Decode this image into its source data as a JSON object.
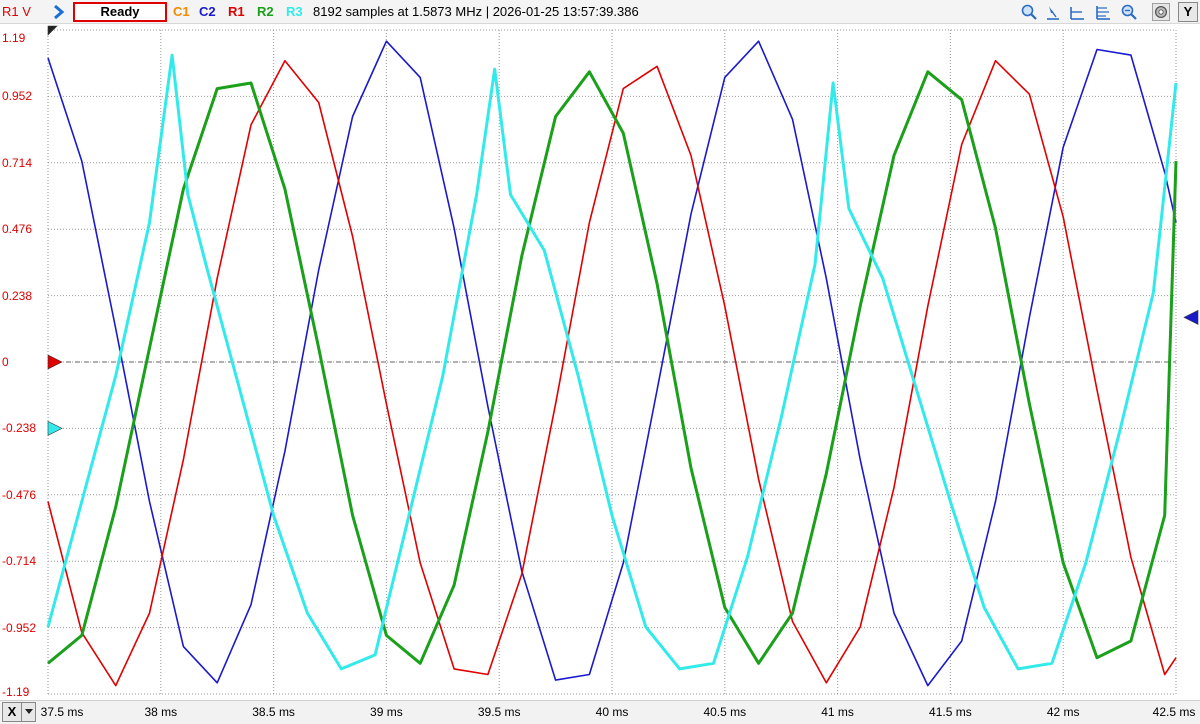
{
  "toolbar": {
    "axis_unit_label": "R1 V",
    "status": "Ready",
    "channels": [
      {
        "label": "C1",
        "color": "#f08c00"
      },
      {
        "label": "C2",
        "color": "#1a1acc"
      },
      {
        "label": "R1",
        "color": "#e00000"
      },
      {
        "label": "R2",
        "color": "#1aa01a"
      },
      {
        "label": "R3",
        "color": "#33eaea"
      }
    ],
    "info": "8192 samples at 1.5873 MHz | 2026-01-25 13:57:39.386",
    "icons": [
      "zoom-in-icon",
      "cursor-icon",
      "horizontal-cursor-icon",
      "multi-cursor-icon",
      "zoom-out-icon",
      "settings-icon"
    ],
    "y_button": "Y"
  },
  "x_axis": {
    "button": "X"
  },
  "colors": {
    "background": "#ffffff",
    "grid": "#9a9a9a",
    "ref_r1": "#e00000",
    "ref_r3": "#33eaea",
    "ref_c2": "#1a1acc"
  },
  "chart_data": {
    "type": "line",
    "title": "",
    "xlabel": "",
    "ylabel": "R1 V",
    "xlim": [
      37.5,
      42.5
    ],
    "ylim": [
      -1.19,
      1.19
    ],
    "x_ticks": [
      "37.5 ms",
      "38 ms",
      "38.5 ms",
      "39 ms",
      "39.5 ms",
      "40 ms",
      "40.5 ms",
      "41 ms",
      "41.5 ms",
      "42 ms",
      "42.5 ms"
    ],
    "y_ticks": [
      "1.19",
      "0.952",
      "0.714",
      "0.476",
      "0.238",
      "0",
      "-0.238",
      "-0.476",
      "-0.714",
      "-0.952",
      "-1.19"
    ],
    "grid": true,
    "series": [
      {
        "name": "C2",
        "color": "#1a1acc",
        "x": [
          37.5,
          37.65,
          37.8,
          37.95,
          38.1,
          38.25,
          38.4,
          38.55,
          38.7,
          38.85,
          39.0,
          39.15,
          39.3,
          39.45,
          39.6,
          39.75,
          39.9,
          40.05,
          40.2,
          40.35,
          40.5,
          40.65,
          40.8,
          40.95,
          41.1,
          41.25,
          41.4,
          41.55,
          41.7,
          41.85,
          42.0,
          42.15,
          42.3,
          42.45,
          42.5
        ],
        "y": [
          1.09,
          0.72,
          0.12,
          -0.5,
          -1.02,
          -1.15,
          -0.87,
          -0.32,
          0.33,
          0.88,
          1.15,
          1.02,
          0.48,
          -0.16,
          -0.75,
          -1.14,
          -1.12,
          -0.72,
          -0.1,
          0.53,
          1.02,
          1.15,
          0.87,
          0.3,
          -0.35,
          -0.9,
          -1.16,
          -1.0,
          -0.5,
          0.16,
          0.77,
          1.12,
          1.1,
          0.68,
          0.5
        ]
      },
      {
        "name": "R1",
        "color": "#e00000",
        "x": [
          37.5,
          37.65,
          37.8,
          37.95,
          38.1,
          38.25,
          38.4,
          38.55,
          38.7,
          38.85,
          39.0,
          39.15,
          39.3,
          39.45,
          39.6,
          39.75,
          39.9,
          40.05,
          40.2,
          40.35,
          40.5,
          40.65,
          40.8,
          40.95,
          41.1,
          41.25,
          41.4,
          41.55,
          41.7,
          41.85,
          42.0,
          42.15,
          42.3,
          42.45,
          42.5
        ],
        "y": [
          -0.5,
          -0.97,
          -1.16,
          -0.9,
          -0.35,
          0.3,
          0.85,
          1.08,
          0.93,
          0.45,
          -0.15,
          -0.72,
          -1.1,
          -1.12,
          -0.76,
          -0.15,
          0.5,
          0.98,
          1.06,
          0.74,
          0.2,
          -0.42,
          -0.93,
          -1.15,
          -0.95,
          -0.45,
          0.2,
          0.78,
          1.08,
          0.96,
          0.52,
          -0.1,
          -0.7,
          -1.12,
          -1.06
        ]
      },
      {
        "name": "R2",
        "color": "#1aa01a",
        "x": [
          37.5,
          37.65,
          37.8,
          37.95,
          38.1,
          38.25,
          38.4,
          38.55,
          38.7,
          38.85,
          39.0,
          39.15,
          39.3,
          39.45,
          39.6,
          39.75,
          39.9,
          40.05,
          40.2,
          40.35,
          40.5,
          40.65,
          40.8,
          40.95,
          41.1,
          41.25,
          41.4,
          41.55,
          41.7,
          41.85,
          42.0,
          42.15,
          42.3,
          42.45,
          42.5
        ],
        "y": [
          -1.08,
          -0.98,
          -0.52,
          0.05,
          0.62,
          0.98,
          1.0,
          0.62,
          0.05,
          -0.55,
          -0.98,
          -1.08,
          -0.8,
          -0.25,
          0.38,
          0.88,
          1.04,
          0.82,
          0.28,
          -0.38,
          -0.88,
          -1.08,
          -0.9,
          -0.4,
          0.2,
          0.74,
          1.04,
          0.94,
          0.48,
          -0.15,
          -0.72,
          -1.06,
          -1.0,
          -0.55,
          0.72
        ]
      },
      {
        "name": "R3",
        "color": "#33eaea",
        "x": [
          37.5,
          37.65,
          37.8,
          37.95,
          38.05,
          38.12,
          38.2,
          38.35,
          38.5,
          38.65,
          38.8,
          38.95,
          39.1,
          39.25,
          39.4,
          39.48,
          39.55,
          39.7,
          39.85,
          40.0,
          40.15,
          40.3,
          40.45,
          40.6,
          40.75,
          40.9,
          40.98,
          41.05,
          41.2,
          41.35,
          41.5,
          41.65,
          41.8,
          41.95,
          42.1,
          42.25,
          42.4,
          42.5
        ],
        "y": [
          -0.95,
          -0.5,
          -0.05,
          0.5,
          1.1,
          0.6,
          0.35,
          -0.1,
          -0.55,
          -0.9,
          -1.1,
          -1.05,
          -0.55,
          -0.05,
          0.6,
          1.05,
          0.6,
          0.4,
          -0.05,
          -0.55,
          -0.95,
          -1.1,
          -1.08,
          -0.7,
          -0.2,
          0.35,
          1.0,
          0.55,
          0.3,
          -0.1,
          -0.5,
          -0.88,
          -1.1,
          -1.08,
          -0.72,
          -0.25,
          0.25,
          1.0
        ]
      }
    ]
  }
}
